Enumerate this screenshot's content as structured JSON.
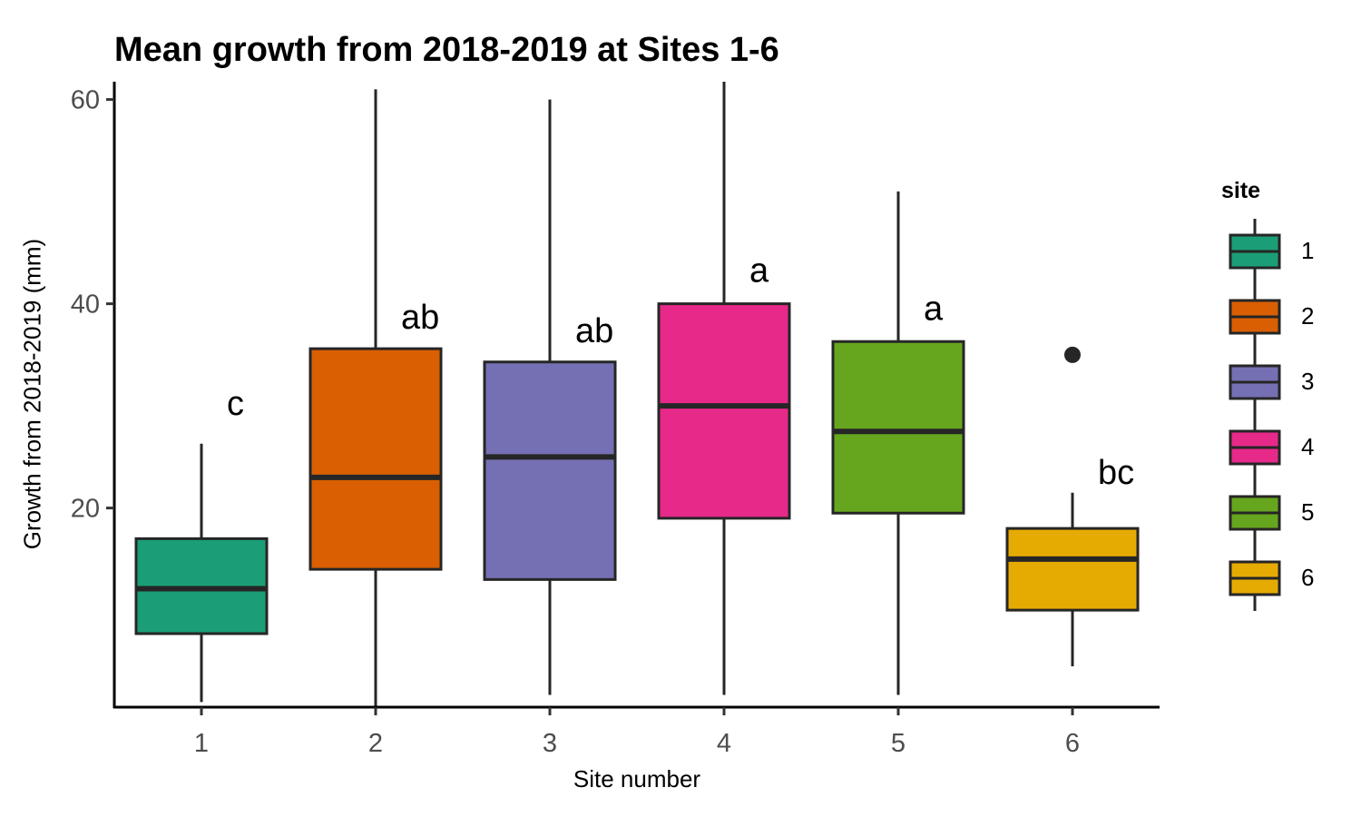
{
  "chart_data": {
    "type": "box",
    "title": "Mean growth from 2018-2019 at Sites 1-6",
    "xlabel": "Site number",
    "ylabel": "Growth from 2018-2019 (mm)",
    "ylim": [
      0.5,
      62.5
    ],
    "yticks": [
      20,
      40,
      60
    ],
    "categories": [
      "1",
      "2",
      "3",
      "4",
      "5",
      "6"
    ],
    "legend_title": "site",
    "legend_position": "right",
    "grid": false,
    "boxes": [
      {
        "site": "1",
        "whisker_low": 1.0,
        "q1": 7.7,
        "median": 12.1,
        "q3": 17.0,
        "whisker_high": 26.3,
        "outliers": [],
        "letter": "c",
        "color": "#1B9E77"
      },
      {
        "site": "2",
        "whisker_low": 0.5,
        "q1": 14.0,
        "median": 23.0,
        "q3": 35.6,
        "whisker_high": 61.0,
        "outliers": [],
        "letter": "ab",
        "color": "#D95F02"
      },
      {
        "site": "3",
        "whisker_low": 1.7,
        "q1": 13.0,
        "median": 25.0,
        "q3": 34.3,
        "whisker_high": 60.0,
        "outliers": [],
        "letter": "ab",
        "color": "#7570B3"
      },
      {
        "site": "4",
        "whisker_low": 1.7,
        "q1": 19.0,
        "median": 30.0,
        "q3": 40.0,
        "whisker_high": 62.5,
        "outliers": [],
        "letter": "a",
        "color": "#E7298A"
      },
      {
        "site": "5",
        "whisker_low": 1.7,
        "q1": 19.5,
        "median": 27.5,
        "q3": 36.3,
        "whisker_high": 51.0,
        "outliers": [],
        "letter": "a",
        "color": "#66A61E"
      },
      {
        "site": "6",
        "whisker_low": 4.5,
        "q1": 10.0,
        "median": 15.0,
        "q3": 18.0,
        "whisker_high": 21.5,
        "outliers": [
          35.0
        ],
        "letter": "bc",
        "color": "#E6AB02"
      }
    ]
  }
}
